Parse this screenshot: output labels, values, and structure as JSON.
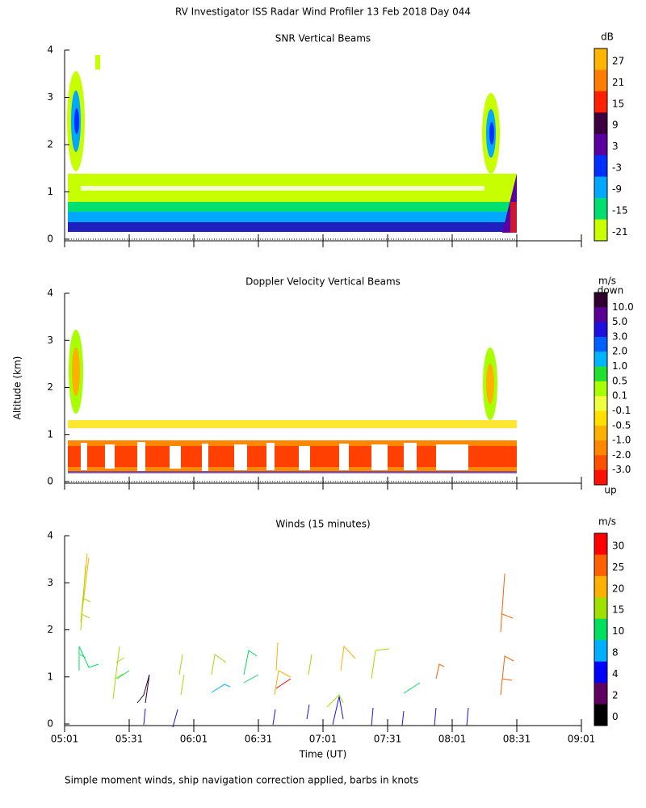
{
  "title": "RV Investigator ISS Radar Wind Profiler  13 Feb 2018 Day 044",
  "y_label": "Altitude (km)",
  "footnote": "Simple moment winds, ship navigation correction applied, barbs in knots",
  "chart_data": [
    {
      "type": "contour",
      "title": "SNR Vertical Beams",
      "ylim": [
        0,
        4
      ],
      "yticks": [
        0,
        1,
        2,
        3,
        4
      ],
      "xlim": [
        301,
        541
      ],
      "xticks": [
        301,
        331,
        361,
        391,
        421,
        451,
        481,
        511,
        541
      ],
      "colorbar": {
        "unit": "dB",
        "ticks": [
          27,
          21,
          15,
          9,
          3,
          -3,
          -9,
          -15,
          -21
        ],
        "colors": [
          "#ffb400",
          "#ff7c00",
          "#ff2000",
          "#3c0040",
          "#5a00a0",
          "#0030ff",
          "#00a8ff",
          "#00e070",
          "#c8ff00"
        ]
      }
    },
    {
      "type": "contour",
      "title": "Doppler Velocity Vertical Beams",
      "ylim": [
        0,
        4
      ],
      "yticks": [
        0,
        1,
        2,
        3,
        4
      ],
      "xlim": [
        301,
        541
      ],
      "xticks": [
        301,
        331,
        361,
        391,
        421,
        451,
        481,
        511,
        541
      ],
      "colorbar": {
        "unit": "m/s",
        "top_label": "down",
        "bottom_label": "up",
        "ticks": [
          {
            "value": 10,
            "label": "10.0"
          },
          {
            "value": 5,
            "label": "5.0"
          },
          {
            "value": 3,
            "label": "3.0"
          },
          {
            "value": 2,
            "label": "2.0"
          },
          {
            "value": 1,
            "label": "1.0"
          },
          0.5,
          0.1,
          -0.1,
          -0.5,
          {
            "value": -1,
            "label": "-1.0"
          },
          {
            "value": -2,
            "label": "-2.0"
          },
          {
            "value": -3,
            "label": "-3.0"
          }
        ],
        "colors": [
          "#300030",
          "#5a0098",
          "#2010e0",
          "#0060ff",
          "#00b4ff",
          "#20e030",
          "#a8ff00",
          "#f0ff40",
          "#ffe000",
          "#ffb000",
          "#ff8800",
          "#ff5000",
          "#ff1000"
        ]
      }
    },
    {
      "type": "barbs",
      "title": "Winds (15 minutes)",
      "x_label": "Time (UT)",
      "ylim": [
        0,
        4
      ],
      "yticks": [
        0,
        1,
        2,
        3,
        4
      ],
      "xlim": [
        301,
        541
      ],
      "xticks": [
        {
          "value": 301,
          "label": "05:01"
        },
        {
          "value": 331,
          "label": "05:31"
        },
        {
          "value": 361,
          "label": "06:01"
        },
        {
          "value": 391,
          "label": "06:31"
        },
        {
          "value": 421,
          "label": "07:01"
        },
        {
          "value": 451,
          "label": "07:31"
        },
        {
          "value": 481,
          "label": "08:01"
        },
        {
          "value": 511,
          "label": "08:31"
        },
        {
          "value": 541,
          "label": "09:01"
        }
      ],
      "colorbar": {
        "unit": "m/s",
        "ticks": [
          30,
          25,
          20,
          15,
          10,
          8,
          4,
          2,
          0
        ],
        "colors": [
          "#ff0000",
          "#ff6000",
          "#ffb000",
          "#a0e000",
          "#00e060",
          "#00b0ff",
          "#0000ff",
          "#600060",
          "#000000"
        ]
      }
    }
  ]
}
